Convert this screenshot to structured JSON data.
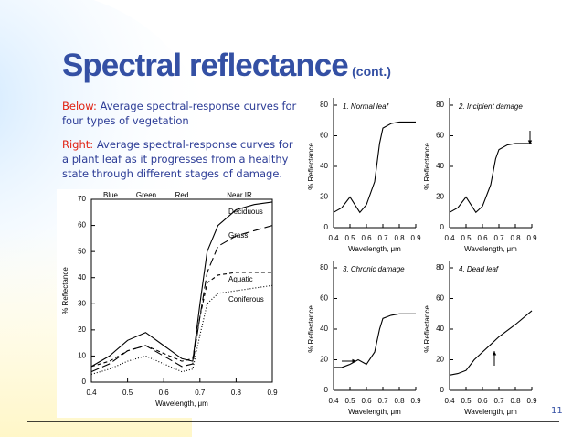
{
  "header": {
    "title": "Spectral reflectance",
    "suffix": "(cont.)"
  },
  "intro": {
    "below": {
      "label": "Below:",
      "text": "Average spectral-response curves for four types of vegetation"
    },
    "right": {
      "label": "Right:",
      "text": "Average spectral-response curves for a plant leaf as it progresses from a healthy state through different stages of damage."
    }
  },
  "page_number": "11",
  "chart_data": [
    {
      "type": "line",
      "xlabel": "Wavelength, μm",
      "ylabel": "% Reflectance",
      "annotations": [
        "Blue",
        "Green",
        "Red",
        "Near IR"
      ],
      "xlim": [
        0.4,
        0.9
      ],
      "xticks": [
        0.4,
        0.5,
        0.6,
        0.7,
        0.8,
        0.9
      ],
      "ylim": [
        0,
        70
      ],
      "yticks": [
        0,
        10,
        20,
        30,
        40,
        50,
        60,
        70
      ],
      "x": [
        0.4,
        0.45,
        0.5,
        0.55,
        0.6,
        0.65,
        0.68,
        0.7,
        0.72,
        0.75,
        0.8,
        0.85,
        0.9
      ],
      "series": [
        {
          "name": "Deciduous",
          "color": "#000000",
          "dash": "none",
          "values": [
            6,
            10,
            16,
            19,
            14,
            9,
            8,
            30,
            50,
            60,
            66,
            68,
            69
          ]
        },
        {
          "name": "Grass",
          "color": "#000000",
          "dash": "9 4",
          "values": [
            4,
            7,
            12,
            14,
            10,
            6,
            7,
            25,
            42,
            52,
            56,
            58,
            60
          ]
        },
        {
          "name": "Aquatic",
          "color": "#000000",
          "dash": "4 3",
          "values": [
            6,
            8,
            12,
            14,
            11,
            8,
            9,
            25,
            38,
            41,
            42,
            42,
            42
          ]
        },
        {
          "name": "Coniferous",
          "color": "#000000",
          "dash": "1 2",
          "values": [
            3,
            5,
            8,
            10,
            7,
            4,
            5,
            18,
            30,
            34,
            35,
            36,
            37
          ]
        }
      ]
    },
    {
      "type": "line",
      "title": "1. Normal leaf",
      "xlabel": "Wavelength, μm",
      "ylabel": "% Reflectance",
      "xlim": [
        0.4,
        0.9
      ],
      "xticks": [
        0.4,
        0.5,
        0.6,
        0.7,
        0.8,
        0.9
      ],
      "ylim": [
        0,
        80
      ],
      "yticks": [
        0,
        20,
        40,
        60,
        80
      ],
      "x": [
        0.4,
        0.45,
        0.5,
        0.53,
        0.56,
        0.6,
        0.65,
        0.68,
        0.7,
        0.75,
        0.8,
        0.9
      ],
      "series": [
        {
          "color": "#000000",
          "values": [
            10,
            13,
            20,
            15,
            10,
            15,
            30,
            55,
            65,
            68,
            69,
            69
          ]
        }
      ]
    },
    {
      "type": "line",
      "title": "2. Incipient damage",
      "xlabel": "Wavelength, μm",
      "ylabel": "% Reflectance",
      "xlim": [
        0.4,
        0.9
      ],
      "xticks": [
        0.4,
        0.5,
        0.6,
        0.7,
        0.8,
        0.9
      ],
      "ylim": [
        0,
        80
      ],
      "yticks": [
        0,
        20,
        40,
        60,
        80
      ],
      "x": [
        0.4,
        0.45,
        0.5,
        0.53,
        0.56,
        0.6,
        0.65,
        0.68,
        0.7,
        0.75,
        0.8,
        0.9
      ],
      "series": [
        {
          "color": "#000000",
          "values": [
            10,
            13,
            20,
            15,
            10,
            14,
            28,
            45,
            51,
            54,
            55,
            55
          ]
        }
      ]
    },
    {
      "type": "line",
      "title": "3. Chronic damage",
      "xlabel": "Wavelength, μm",
      "ylabel": "% Reflectance",
      "xlim": [
        0.4,
        0.9
      ],
      "xticks": [
        0.4,
        0.5,
        0.6,
        0.7,
        0.8,
        0.9
      ],
      "ylim": [
        0,
        80
      ],
      "yticks": [
        0,
        20,
        40,
        60,
        80
      ],
      "x": [
        0.4,
        0.45,
        0.5,
        0.55,
        0.6,
        0.65,
        0.68,
        0.7,
        0.75,
        0.8,
        0.9
      ],
      "series": [
        {
          "color": "#000000",
          "values": [
            15,
            15,
            17,
            20,
            17,
            25,
            40,
            47,
            49,
            50,
            50
          ]
        }
      ]
    },
    {
      "type": "line",
      "title": "4. Dead leaf",
      "xlabel": "Wavelength, μm",
      "ylabel": "% Reflectance",
      "xlim": [
        0.4,
        0.9
      ],
      "xticks": [
        0.4,
        0.5,
        0.6,
        0.7,
        0.8,
        0.9
      ],
      "ylim": [
        0,
        80
      ],
      "yticks": [
        0,
        20,
        40,
        60,
        80
      ],
      "x": [
        0.4,
        0.45,
        0.5,
        0.55,
        0.6,
        0.65,
        0.7,
        0.8,
        0.9
      ],
      "series": [
        {
          "color": "#000000",
          "values": [
            10,
            11,
            13,
            20,
            25,
            30,
            35,
            43,
            52
          ]
        }
      ]
    }
  ]
}
